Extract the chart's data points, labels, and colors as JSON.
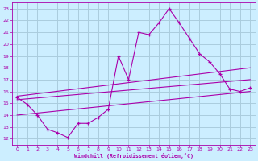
{
  "title": "",
  "xlabel": "Windchill (Refroidissement éolien,°C)",
  "bg_color": "#cceeff",
  "grid_color": "#aaccdd",
  "line_color": "#aa00aa",
  "xlim": [
    -0.5,
    23.5
  ],
  "ylim": [
    11.5,
    23.5
  ],
  "x_ticks": [
    0,
    1,
    2,
    3,
    4,
    5,
    6,
    7,
    8,
    9,
    10,
    11,
    12,
    13,
    14,
    15,
    16,
    17,
    18,
    19,
    20,
    21,
    22,
    23
  ],
  "y_ticks": [
    12,
    13,
    14,
    15,
    16,
    17,
    18,
    19,
    20,
    21,
    22,
    23
  ],
  "series1": [
    [
      0,
      15.5
    ],
    [
      1,
      14.9
    ],
    [
      2,
      14.0
    ],
    [
      3,
      12.8
    ],
    [
      4,
      12.5
    ],
    [
      5,
      12.1
    ],
    [
      6,
      13.3
    ],
    [
      7,
      13.3
    ],
    [
      8,
      13.8
    ],
    [
      9,
      14.5
    ],
    [
      10,
      19.0
    ],
    [
      11,
      17.0
    ],
    [
      12,
      21.0
    ],
    [
      13,
      20.8
    ],
    [
      14,
      21.8
    ],
    [
      15,
      23.0
    ],
    [
      16,
      21.8
    ],
    [
      17,
      20.5
    ],
    [
      18,
      19.2
    ],
    [
      19,
      18.5
    ],
    [
      20,
      17.5
    ],
    [
      21,
      16.2
    ],
    [
      22,
      16.0
    ],
    [
      23,
      16.3
    ]
  ],
  "line2_x": [
    0,
    23
  ],
  "line2_y": [
    15.6,
    18.0
  ],
  "line3_x": [
    0,
    23
  ],
  "line3_y": [
    15.3,
    17.0
  ],
  "line4_x": [
    0,
    23
  ],
  "line4_y": [
    14.0,
    16.0
  ]
}
